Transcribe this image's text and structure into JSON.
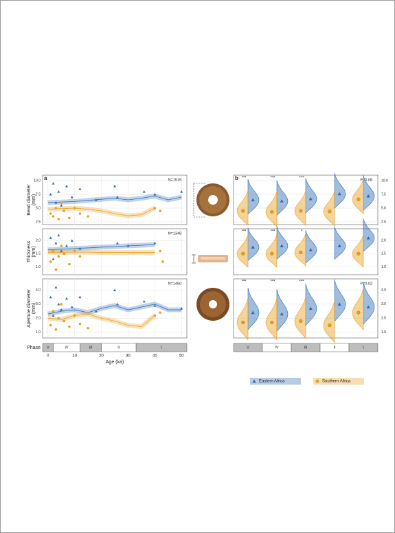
{
  "chart_data": [
    {
      "type": "scatter",
      "label": "a",
      "annotation": "N=1515",
      "ylabel": [
        "Bead diameter",
        "(mm)"
      ],
      "ylim": [
        2,
        11
      ],
      "yticks": [
        {
          "value": 2.5,
          "label": "2.5"
        },
        {
          "value": 5,
          "label": "5.0"
        },
        {
          "value": 7.5,
          "label": "7.5"
        },
        {
          "value": 10,
          "label": "10.0"
        }
      ],
      "series": [
        {
          "name": "Eastern Africa",
          "color": "#2f6db5",
          "x": [
            1,
            2,
            3,
            4,
            5,
            7,
            9,
            12,
            18,
            25,
            26,
            36,
            40,
            50
          ],
          "values": [
            7.5,
            9.5,
            6,
            8,
            5.5,
            9,
            7,
            8.5,
            6.5,
            9,
            7,
            8,
            7.5,
            8
          ]
        },
        {
          "name": "Southern Africa",
          "color": "#e8a020",
          "x": [
            1,
            2,
            3,
            4,
            5,
            6,
            8,
            10,
            12,
            15,
            40,
            42
          ],
          "values": [
            4,
            3.5,
            5,
            3,
            6,
            4.5,
            3.2,
            5,
            4,
            3.5,
            5,
            4.5
          ]
        }
      ],
      "trend": [
        {
          "color": "#2f6db5",
          "x": [
            0,
            5,
            10,
            15,
            20,
            25,
            30,
            35,
            40,
            45,
            50
          ],
          "values": [
            6.0,
            6.1,
            6.2,
            6.4,
            6.6,
            6.8,
            6.5,
            6.8,
            7.2,
            6.5,
            7.0
          ]
        },
        {
          "color": "#e8a020",
          "x": [
            0,
            5,
            10,
            15,
            20,
            25,
            30,
            35,
            40,
            45,
            50
          ],
          "values": [
            4.8,
            4.9,
            5.0,
            4.8,
            4.5,
            4.0,
            3.6,
            3.8,
            5.0,
            null,
            null
          ]
        }
      ]
    },
    {
      "type": "scatter",
      "annotation": "N=1348",
      "ylabel": [
        "Thickness",
        "(mm)"
      ],
      "ylim": [
        0.7,
        2.45
      ],
      "yticks": [
        {
          "value": 1,
          "label": "1.0"
        },
        {
          "value": 1.5,
          "label": "1.5"
        },
        {
          "value": 2,
          "label": "2.0"
        }
      ],
      "series": [
        {
          "name": "Eastern Africa",
          "color": "#2f6db5",
          "x": [
            1,
            2,
            3,
            4,
            5,
            7,
            9,
            12,
            26,
            30,
            40
          ],
          "values": [
            2.1,
            1.3,
            1.9,
            2.2,
            1.6,
            1.8,
            2.0,
            1.7,
            1.9,
            1.8,
            1.9
          ]
        },
        {
          "name": "Southern Africa",
          "color": "#e8a020",
          "x": [
            1,
            2,
            3,
            4,
            5,
            6,
            8,
            10,
            12,
            42,
            43
          ],
          "values": [
            1.2,
            1.6,
            0.9,
            1.4,
            1.8,
            1.5,
            1.1,
            1.6,
            1.4,
            1.6,
            1.2
          ]
        }
      ],
      "trend": [
        {
          "color": "#2f6db5",
          "x": [
            0,
            5,
            10,
            15,
            20,
            25,
            30,
            35,
            40,
            45,
            50
          ],
          "values": [
            1.65,
            1.67,
            1.7,
            1.72,
            1.75,
            1.77,
            1.8,
            1.82,
            1.85,
            null,
            null
          ]
        },
        {
          "color": "#e8a020",
          "x": [
            0,
            5,
            10,
            15,
            20,
            25,
            30,
            35,
            40,
            45,
            50
          ],
          "values": [
            1.55,
            1.55,
            1.56,
            1.56,
            1.55,
            1.55,
            1.55,
            1.55,
            1.55,
            null,
            null
          ]
        }
      ]
    },
    {
      "type": "scatter",
      "annotation": "N=1450",
      "ylabel": [
        "Aperture diameter",
        "(mm)"
      ],
      "ylim": [
        0.6,
        4.8
      ],
      "yticks": [
        {
          "value": 1,
          "label": "1.0"
        },
        {
          "value": 2,
          "label": "2.0"
        },
        {
          "value": 3,
          "label": "3.0"
        },
        {
          "value": 4,
          "label": "4.0"
        }
      ],
      "xlim": [
        -2,
        52
      ],
      "xticks": [
        0,
        10,
        20,
        30,
        40,
        50
      ],
      "xlabel": "Age (ka)",
      "series": [
        {
          "name": "Eastern Africa",
          "color": "#2f6db5",
          "x": [
            1,
            2,
            3,
            4,
            5,
            7,
            9,
            12,
            18,
            25,
            26,
            36,
            40,
            50
          ],
          "values": [
            3.5,
            2.2,
            4.2,
            3,
            2.6,
            3.4,
            2.8,
            3.5,
            2.5,
            4,
            3,
            3.2,
            2.9,
            2.7
          ]
        },
        {
          "name": "Southern Africa",
          "color": "#e8a020",
          "x": [
            1,
            2,
            3,
            4,
            5,
            6,
            8,
            10,
            12,
            15,
            40,
            42
          ],
          "values": [
            1.5,
            2.5,
            1.2,
            2,
            3,
            1.8,
            1.4,
            2.2,
            1.6,
            1.3,
            2.2,
            2.4
          ]
        }
      ],
      "trend": [
        {
          "color": "#2f6db5",
          "x": [
            0,
            5,
            10,
            15,
            20,
            25,
            30,
            35,
            40,
            45,
            50
          ],
          "values": [
            2.3,
            2.5,
            2.6,
            2.4,
            2.7,
            2.9,
            2.6,
            2.8,
            3.0,
            2.6,
            2.6
          ]
        },
        {
          "color": "#e8a020",
          "x": [
            0,
            5,
            10,
            15,
            20,
            25,
            30,
            35,
            40,
            45,
            50
          ],
          "values": [
            2.0,
            1.9,
            2.2,
            2.3,
            2.0,
            1.8,
            1.5,
            1.4,
            2.2,
            null,
            null
          ]
        }
      ]
    },
    {
      "type": "violin",
      "label": "b",
      "annotation": "P=0.08",
      "categories": [
        "V",
        "IV",
        "III",
        "II",
        "I"
      ],
      "significance": [
        "***",
        "***",
        "***",
        null,
        null
      ],
      "ylim": [
        2,
        11
      ],
      "yticks": [
        {
          "value": 2.5,
          "label": "2.5"
        },
        {
          "value": 5,
          "label": "5.0"
        },
        {
          "value": 7.5,
          "label": "7.5"
        },
        {
          "value": 10,
          "label": "10.0"
        }
      ],
      "series": [
        {
          "name": "Eastern Africa",
          "color": "#2f6db5",
          "values": [
            6.5,
            6.3,
            6.7,
            7.6,
            7.2
          ]
        },
        {
          "name": "Southern Africa",
          "color": "#e8a020",
          "values": [
            4.5,
            4.3,
            4.5,
            4.4,
            6.6
          ]
        }
      ]
    },
    {
      "type": "violin",
      "categories": [
        "V",
        "IV",
        "III",
        "II",
        "I"
      ],
      "significance": [
        "***",
        "***",
        "*",
        null,
        null
      ],
      "ylim": [
        0.7,
        2.45
      ],
      "yticks": [
        {
          "value": 1,
          "label": "1.0"
        },
        {
          "value": 1.5,
          "label": "1.5"
        },
        {
          "value": 2,
          "label": "2.0"
        }
      ],
      "series": [
        {
          "name": "Eastern Africa",
          "color": "#2f6db5",
          "values": [
            1.75,
            1.8,
            1.65,
            1.8,
            2.1
          ]
        },
        {
          "name": "Southern Africa",
          "color": "#e8a020",
          "values": [
            1.5,
            1.5,
            1.55,
            null,
            1.5
          ]
        }
      ]
    },
    {
      "type": "violin",
      "annotation": "P=0.02",
      "categories": [
        "V",
        "IV",
        "III",
        "II",
        "I"
      ],
      "significance": [
        "***",
        "***",
        "***",
        null,
        null
      ],
      "ylim": [
        0.6,
        4.8
      ],
      "yticks": [
        {
          "value": 1,
          "label": "1.0"
        },
        {
          "value": 2,
          "label": "2.0"
        },
        {
          "value": 3,
          "label": "3.0"
        },
        {
          "value": 4,
          "label": "4.0"
        }
      ],
      "series": [
        {
          "name": "Eastern Africa",
          "color": "#2f6db5",
          "values": [
            2.4,
            2.3,
            2.7,
            3.0,
            2.8
          ]
        },
        {
          "name": "Southern Africa",
          "color": "#e8a020",
          "values": [
            1.7,
            1.7,
            1.8,
            1.5,
            2.4
          ]
        }
      ]
    }
  ],
  "phase_bar": {
    "label": "Phase",
    "phases": [
      {
        "name": "V",
        "start": -2,
        "end": 2
      },
      {
        "name": "IV",
        "start": 2,
        "end": 12
      },
      {
        "name": "III",
        "start": 12,
        "end": 20
      },
      {
        "name": "II",
        "start": 20,
        "end": 33
      },
      {
        "name": "I",
        "start": 33,
        "end": 52
      }
    ]
  }
}
